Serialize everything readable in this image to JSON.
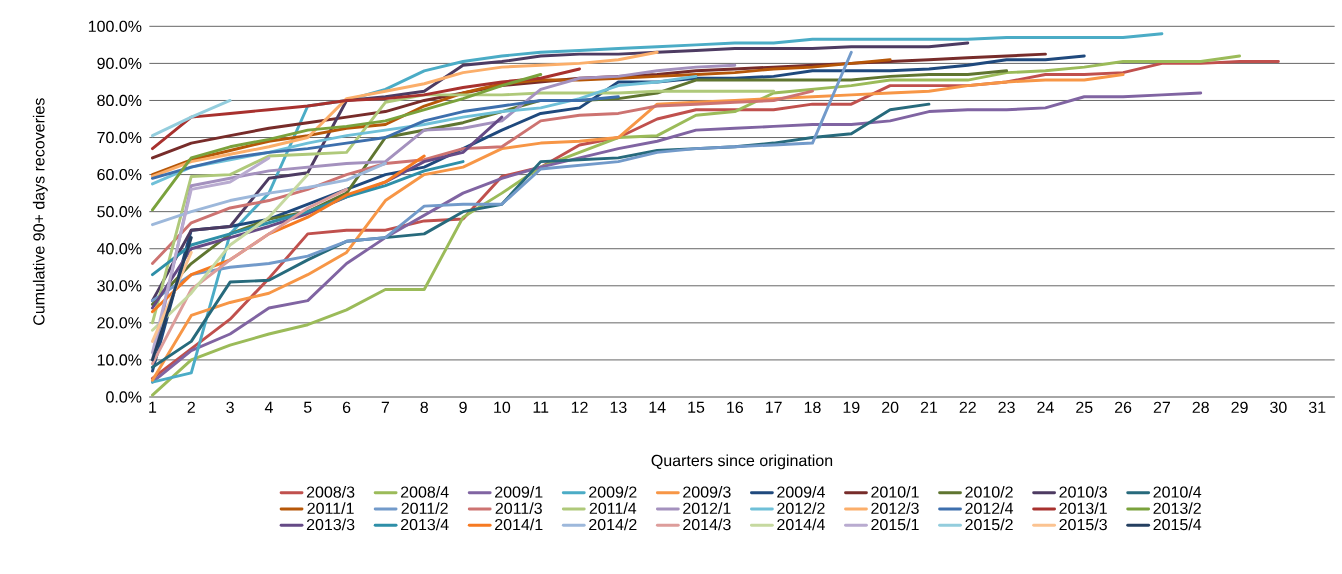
{
  "chart_data": {
    "type": "line",
    "xlabel": "Quarters since origination",
    "ylabel": "Cumulative 90+ days recoveries",
    "categories": [
      "1",
      "2",
      "3",
      "4",
      "5",
      "6",
      "7",
      "8",
      "9",
      "10",
      "11",
      "12",
      "13",
      "14",
      "15",
      "16",
      "17",
      "18",
      "19",
      "20",
      "21",
      "22",
      "23",
      "24",
      "25",
      "26",
      "27",
      "28",
      "29",
      "30",
      "31"
    ],
    "ylim": [
      0,
      100
    ],
    "yticks": [
      {
        "value": 0,
        "label": "0.0%"
      },
      {
        "value": 10,
        "label": "10.0%"
      },
      {
        "value": 20,
        "label": "20.0%"
      },
      {
        "value": 30,
        "label": "30.0%"
      },
      {
        "value": 40,
        "label": "40.0%"
      },
      {
        "value": 50,
        "label": "50.0%"
      },
      {
        "value": 60,
        "label": "60.0%"
      },
      {
        "value": 70,
        "label": "70.0%"
      },
      {
        "value": 80,
        "label": "80.0%"
      },
      {
        "value": 90,
        "label": "90.0%"
      },
      {
        "value": 100,
        "label": "100.0%"
      }
    ],
    "grid": "y",
    "legend": "bottom",
    "series": [
      {
        "name": "2008/3",
        "color": "#c0504d",
        "values": [
          5,
          13,
          21,
          32,
          44,
          45,
          45,
          47.5,
          48,
          59.5,
          62,
          68,
          70,
          75,
          77.5,
          77.5,
          77.5,
          79,
          79,
          84,
          84,
          84,
          85,
          87,
          87,
          87.5,
          90,
          90,
          90.5,
          90.5,
          null
        ]
      },
      {
        "name": "2008/4",
        "color": "#9bbb59",
        "values": [
          0.5,
          10,
          14,
          17,
          19.5,
          23.5,
          29,
          29,
          48.5,
          55,
          62,
          66,
          70,
          70.5,
          76,
          77,
          82,
          83,
          84,
          85.5,
          85.5,
          85.5,
          87.5,
          88,
          89,
          90.5,
          90.5,
          90.5,
          92,
          null,
          null
        ]
      },
      {
        "name": "2009/1",
        "color": "#8064a2",
        "values": [
          4,
          12.5,
          17,
          24,
          26,
          36,
          43,
          49,
          55,
          59,
          62,
          64.5,
          67,
          69,
          72,
          72.5,
          73,
          73.5,
          73.5,
          74.5,
          77,
          77.5,
          77.5,
          78,
          81,
          81,
          81.5,
          82,
          null,
          null,
          null
        ]
      },
      {
        "name": "2009/2",
        "color": "#4bacc6",
        "values": [
          4,
          6.5,
          44,
          55,
          78.5,
          80,
          83,
          88,
          90.5,
          92,
          93,
          93.5,
          94,
          94.5,
          95,
          95.5,
          95.5,
          96.5,
          96.5,
          96.5,
          96.5,
          96.5,
          97,
          97,
          97,
          97,
          98,
          null,
          null,
          null,
          null
        ]
      },
      {
        "name": "2009/3",
        "color": "#f79646",
        "values": [
          4.5,
          22,
          25.5,
          28,
          33,
          39,
          53,
          60,
          62,
          67,
          68.5,
          69,
          70,
          79,
          79.5,
          80,
          80.5,
          81,
          81.5,
          82,
          82.5,
          84,
          85,
          85.5,
          85.5,
          87,
          null,
          null,
          null,
          null,
          null
        ]
      },
      {
        "name": "2009/4",
        "color": "#1f497d",
        "values": [
          7,
          45,
          46,
          48,
          52,
          56,
          60,
          62,
          67,
          72,
          76.5,
          78,
          85,
          85,
          86,
          86,
          86.5,
          88,
          88,
          88,
          88.5,
          89.5,
          91,
          91,
          92,
          null,
          null,
          null,
          null,
          null,
          null
        ]
      },
      {
        "name": "2010/1",
        "color": "#772c2a",
        "values": [
          64.5,
          68.5,
          70.5,
          72.5,
          74,
          75.5,
          77,
          80,
          82,
          84,
          85,
          86,
          86.5,
          87,
          88,
          88.5,
          89,
          89.5,
          90,
          90.5,
          91,
          91.5,
          92,
          92.5,
          null,
          null,
          null,
          null,
          null,
          null,
          null
        ]
      },
      {
        "name": "2010/2",
        "color": "#5f7530",
        "values": [
          25,
          36,
          44,
          48,
          50,
          55,
          70,
          72,
          74,
          77,
          80,
          80,
          80.5,
          82,
          85.5,
          85.5,
          85.5,
          85.5,
          85.5,
          86.5,
          87,
          87,
          88,
          null,
          null,
          null,
          null,
          null,
          null,
          null,
          null
        ]
      },
      {
        "name": "2010/3",
        "color": "#4d3b62",
        "values": [
          26,
          45,
          46,
          59,
          60.5,
          80,
          81,
          82.5,
          89.5,
          90.5,
          92,
          92.5,
          92.5,
          93,
          93.5,
          94,
          94,
          94,
          94.5,
          94.5,
          94.5,
          95.5,
          null,
          null,
          null,
          null,
          null,
          null,
          null,
          null,
          null
        ]
      },
      {
        "name": "2010/4",
        "color": "#276a7c",
        "values": [
          8,
          15,
          31,
          31.5,
          37,
          42,
          43,
          44,
          50,
          52,
          63.5,
          64,
          64.5,
          66.5,
          67,
          67.5,
          68.5,
          70,
          71,
          77.5,
          79,
          null,
          null,
          null,
          null,
          null,
          null,
          null,
          null,
          null,
          null
        ]
      },
      {
        "name": "2011/1",
        "color": "#b65708",
        "values": [
          60,
          64,
          66.5,
          69,
          70.5,
          72.5,
          73.5,
          78.5,
          82,
          84.5,
          85.5,
          85.5,
          86,
          86.5,
          87,
          87.5,
          88.5,
          89,
          90,
          91,
          null,
          null,
          null,
          null,
          null,
          null,
          null,
          null,
          null,
          null,
          null
        ]
      },
      {
        "name": "2011/2",
        "color": "#729aca",
        "values": [
          26,
          33,
          35,
          36,
          38,
          42,
          43,
          51.5,
          52,
          52,
          61.5,
          62.5,
          63.5,
          66,
          67,
          67.5,
          68,
          68.5,
          93,
          null,
          null,
          null,
          null,
          null,
          null,
          null,
          null,
          null,
          null,
          null,
          null
        ]
      },
      {
        "name": "2011/3",
        "color": "#cd7371",
        "values": [
          36,
          47,
          51,
          53,
          56,
          60,
          63,
          64,
          67,
          67.5,
          74.5,
          76,
          76.5,
          78.5,
          79,
          79.5,
          80,
          82.5,
          null,
          null,
          null,
          null,
          null,
          null,
          null,
          null,
          null,
          null,
          null,
          null,
          null
        ]
      },
      {
        "name": "2011/4",
        "color": "#afc97a",
        "values": [
          20,
          59.5,
          60,
          65,
          65.5,
          66,
          79.5,
          81.5,
          81.5,
          81.5,
          82,
          82,
          82,
          82.5,
          82.5,
          82.5,
          82.5,
          null,
          null,
          null,
          null,
          null,
          null,
          null,
          null,
          null,
          null,
          null,
          null,
          null,
          null
        ]
      },
      {
        "name": "2012/1",
        "color": "#a491be",
        "values": [
          10,
          57,
          59,
          61,
          62,
          63,
          63.5,
          72,
          72.5,
          74.5,
          83,
          86,
          86.5,
          88,
          89,
          89.5,
          null,
          null,
          null,
          null,
          null,
          null,
          null,
          null,
          null,
          null,
          null,
          null,
          null,
          null,
          null
        ]
      },
      {
        "name": "2012/2",
        "color": "#6fc0d8",
        "values": [
          57.5,
          62,
          64,
          66,
          68.5,
          70.5,
          72,
          73.5,
          75.5,
          77,
          78,
          80.5,
          84,
          85,
          86.5,
          null,
          null,
          null,
          null,
          null,
          null,
          null,
          null,
          null,
          null,
          null,
          null,
          null,
          null,
          null,
          null
        ]
      },
      {
        "name": "2012/3",
        "color": "#fbae6a",
        "values": [
          59.5,
          63.5,
          65.5,
          67.5,
          70,
          80.5,
          82.5,
          84.5,
          87.5,
          89,
          89.5,
          90,
          91,
          93,
          null,
          null,
          null,
          null,
          null,
          null,
          null,
          null,
          null,
          null,
          null,
          null,
          null,
          null,
          null,
          null,
          null
        ]
      },
      {
        "name": "2012/4",
        "color": "#3d6fad",
        "values": [
          59,
          62,
          64.5,
          66,
          67,
          68.5,
          70,
          74.5,
          77,
          78.5,
          80,
          80,
          81,
          null,
          null,
          null,
          null,
          null,
          null,
          null,
          null,
          null,
          null,
          null,
          null,
          null,
          null,
          null,
          null,
          null,
          null
        ]
      },
      {
        "name": "2013/1",
        "color": "#a8312e",
        "values": [
          67,
          75.5,
          76.5,
          77.5,
          78.5,
          80,
          80.5,
          81.5,
          83.5,
          85,
          86,
          88.5,
          null,
          null,
          null,
          null,
          null,
          null,
          null,
          null,
          null,
          null,
          null,
          null,
          null,
          null,
          null,
          null,
          null,
          null,
          null
        ]
      },
      {
        "name": "2013/2",
        "color": "#7aa23c",
        "values": [
          50.5,
          64.5,
          67.5,
          69.5,
          72,
          73,
          74.5,
          77.5,
          80.5,
          84,
          87,
          null,
          null,
          null,
          null,
          null,
          null,
          null,
          null,
          null,
          null,
          null,
          null,
          null,
          null,
          null,
          null,
          null,
          null,
          null,
          null
        ]
      },
      {
        "name": "2013/3",
        "color": "#654a86",
        "values": [
          24,
          40,
          43,
          46,
          49.5,
          54,
          58,
          63.5,
          66,
          75.5,
          null,
          null,
          null,
          null,
          null,
          null,
          null,
          null,
          null,
          null,
          null,
          null,
          null,
          null,
          null,
          null,
          null,
          null,
          null,
          null,
          null
        ]
      },
      {
        "name": "2013/4",
        "color": "#2e8fa8",
        "values": [
          33,
          41,
          44,
          47,
          50,
          54,
          57,
          61,
          63.5,
          null,
          null,
          null,
          null,
          null,
          null,
          null,
          null,
          null,
          null,
          null,
          null,
          null,
          null,
          null,
          null,
          null,
          null,
          null,
          null,
          null,
          null
        ]
      },
      {
        "name": "2014/1",
        "color": "#f67a22",
        "values": [
          23,
          33,
          37,
          44,
          48.5,
          54.5,
          58,
          65,
          null,
          null,
          null,
          null,
          null,
          null,
          null,
          null,
          null,
          null,
          null,
          null,
          null,
          null,
          null,
          null,
          null,
          null,
          null,
          null,
          null,
          null,
          null
        ]
      },
      {
        "name": "2014/2",
        "color": "#9db8db",
        "values": [
          46.5,
          50,
          53,
          55,
          56.5,
          58.5,
          63,
          null,
          null,
          null,
          null,
          null,
          null,
          null,
          null,
          null,
          null,
          null,
          null,
          null,
          null,
          null,
          null,
          null,
          null,
          null,
          null,
          null,
          null,
          null,
          null
        ]
      },
      {
        "name": "2014/3",
        "color": "#dd9d9b",
        "values": [
          9,
          29,
          37,
          44,
          51,
          56,
          null,
          null,
          null,
          null,
          null,
          null,
          null,
          null,
          null,
          null,
          null,
          null,
          null,
          null,
          null,
          null,
          null,
          null,
          null,
          null,
          null,
          null,
          null,
          null,
          null
        ]
      },
      {
        "name": "2014/4",
        "color": "#c6d9a0",
        "values": [
          18,
          28,
          41,
          48.5,
          60,
          null,
          null,
          null,
          null,
          null,
          null,
          null,
          null,
          null,
          null,
          null,
          null,
          null,
          null,
          null,
          null,
          null,
          null,
          null,
          null,
          null,
          null,
          null,
          null,
          null,
          null
        ]
      },
      {
        "name": "2015/1",
        "color": "#b9abd0",
        "values": [
          12,
          56,
          58,
          64.5,
          null,
          null,
          null,
          null,
          null,
          null,
          null,
          null,
          null,
          null,
          null,
          null,
          null,
          null,
          null,
          null,
          null,
          null,
          null,
          null,
          null,
          null,
          null,
          null,
          null,
          null,
          null
        ]
      },
      {
        "name": "2015/2",
        "color": "#93cddd",
        "values": [
          70.5,
          75.5,
          80,
          null,
          null,
          null,
          null,
          null,
          null,
          null,
          null,
          null,
          null,
          null,
          null,
          null,
          null,
          null,
          null,
          null,
          null,
          null,
          null,
          null,
          null,
          null,
          null,
          null,
          null,
          null,
          null
        ]
      },
      {
        "name": "2015/3",
        "color": "#fbc391",
        "values": [
          15,
          39,
          null,
          null,
          null,
          null,
          null,
          null,
          null,
          null,
          null,
          null,
          null,
          null,
          null,
          null,
          null,
          null,
          null,
          null,
          null,
          null,
          null,
          null,
          null,
          null,
          null,
          null,
          null,
          null,
          null
        ]
      },
      {
        "name": "2015/4",
        "color": "#243f60",
        "values": [
          10,
          43,
          null,
          null,
          null,
          null,
          null,
          null,
          null,
          null,
          null,
          null,
          null,
          null,
          null,
          null,
          null,
          null,
          null,
          null,
          null,
          null,
          null,
          null,
          null,
          null,
          null,
          null,
          null,
          null,
          null
        ]
      }
    ]
  }
}
